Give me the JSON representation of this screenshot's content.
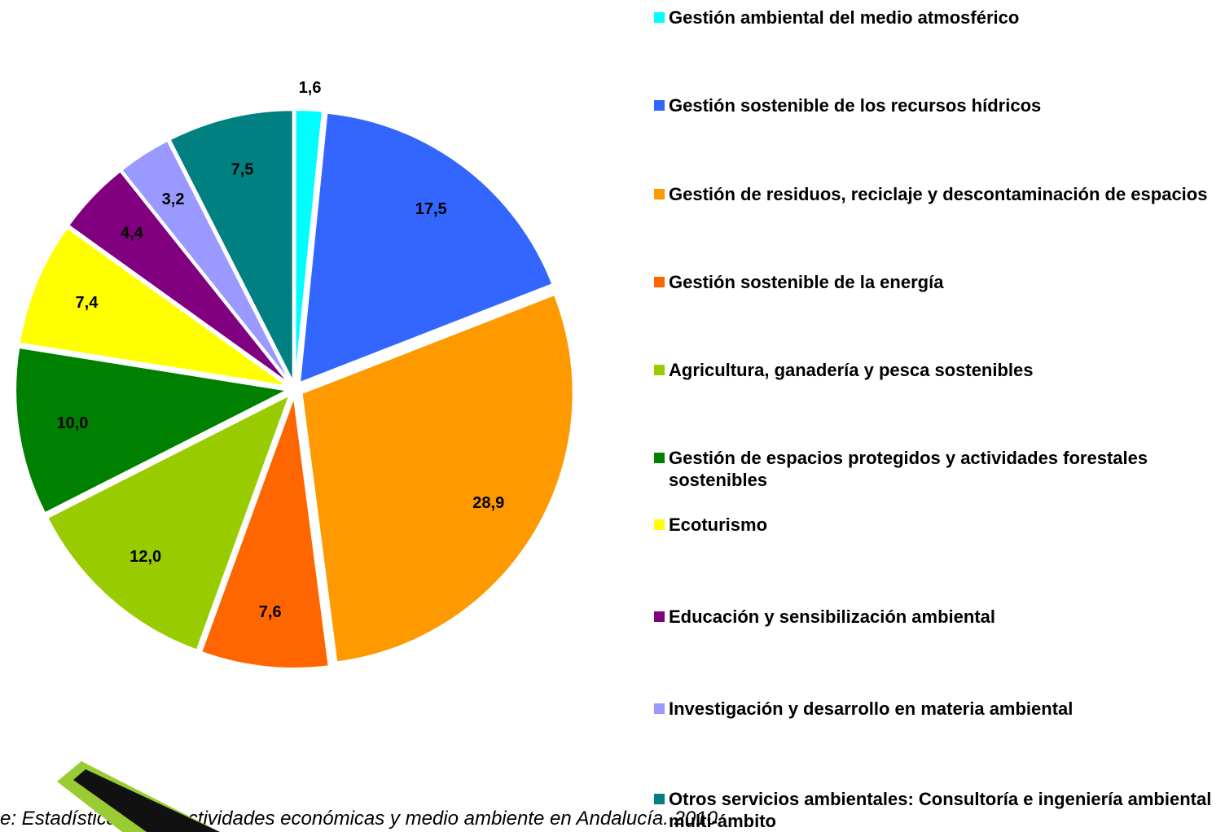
{
  "chart_data": {
    "type": "pie",
    "categories": [
      "Gestión ambiental del medio atmosférico",
      "Gestión sostenible de los recursos hídricos",
      "Gestión de residuos, reciclaje y descontaminación de espacios",
      "Gestión sostenible de la energía",
      "Agricultura, ganadería y pesca sostenibles",
      "Gestión de espacios protegidos y actividades forestales sostenibles",
      "Ecoturismo",
      "Educación y sensibilización ambiental",
      "Investigación y desarrollo en materia ambiental",
      "Otros servicios ambientales: Consultoría e ingeniería ambiental multi-ámbito"
    ],
    "values": [
      1.6,
      17.5,
      28.9,
      7.6,
      12.0,
      10.0,
      7.4,
      4.4,
      3.2,
      7.5
    ],
    "value_labels": [
      "1,6",
      "17,5",
      "28,9",
      "7,6",
      "12,0",
      "10,0",
      "7,4",
      "4,4",
      "3,2",
      "7,5"
    ],
    "colors": [
      "#00ffff",
      "#3366ff",
      "#ff9900",
      "#ff6600",
      "#99cc00",
      "#008000",
      "#ffff00",
      "#800080",
      "#9999ff",
      "#008080"
    ],
    "legend": "right",
    "source": "e: Estadística sobre actividades económicas y medio ambiente en Andalucía. 2010"
  }
}
